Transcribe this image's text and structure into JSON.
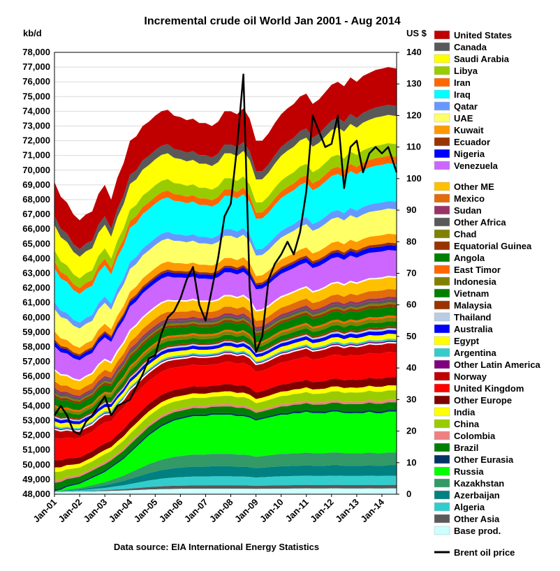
{
  "chart_data": {
    "type": "area",
    "title": "Incremental crude oil World  Jan 2001 - Aug 2014",
    "ylabel_left": "kb/d",
    "ylabel_right": "US $",
    "source": "Data source: EIA International Energy Statistics",
    "ylim_left": [
      48000,
      78000
    ],
    "ylim_right": [
      0,
      140
    ],
    "y_ticks_left": [
      "48,000",
      "49,000",
      "50,000",
      "51,000",
      "52,000",
      "53,000",
      "54,000",
      "55,000",
      "56,000",
      "57,000",
      "58,000",
      "59,000",
      "60,000",
      "61,000",
      "62,000",
      "63,000",
      "64,000",
      "65,000",
      "66,000",
      "67,000",
      "68,000",
      "69,000",
      "70,000",
      "71,000",
      "72,000",
      "73,000",
      "74,000",
      "75,000",
      "76,000",
      "77,000",
      "78,000"
    ],
    "y_ticks_right": [
      "0",
      "10",
      "20",
      "30",
      "40",
      "50",
      "60",
      "70",
      "80",
      "90",
      "100",
      "110",
      "120",
      "130",
      "140"
    ],
    "x_ticks": [
      "Jan-01",
      "Jan-02",
      "Jan-03",
      "Jan-04",
      "Jan-05",
      "Jan-06",
      "Jan-07",
      "Jan-08",
      "Jan-09",
      "Jan-10",
      "Jan-11",
      "Jan-12",
      "Jan-13",
      "Jan-14"
    ],
    "x": [
      "2001-01",
      "2001-04",
      "2001-07",
      "2001-10",
      "2002-01",
      "2002-04",
      "2002-07",
      "2002-10",
      "2003-01",
      "2003-04",
      "2003-07",
      "2003-10",
      "2004-01",
      "2004-04",
      "2004-07",
      "2004-10",
      "2005-01",
      "2005-04",
      "2005-07",
      "2005-10",
      "2006-01",
      "2006-04",
      "2006-07",
      "2006-10",
      "2007-01",
      "2007-04",
      "2007-07",
      "2007-10",
      "2008-01",
      "2008-04",
      "2008-07",
      "2008-10",
      "2009-01",
      "2009-04",
      "2009-07",
      "2009-10",
      "2010-01",
      "2010-04",
      "2010-07",
      "2010-10",
      "2011-01",
      "2011-04",
      "2011-07",
      "2011-10",
      "2012-01",
      "2012-04",
      "2012-07",
      "2012-10",
      "2013-01",
      "2013-04",
      "2013-07",
      "2013-10",
      "2014-01",
      "2014-04",
      "2014-08"
    ],
    "total_kbd": [
      69200,
      68200,
      67800,
      67000,
      66600,
      67000,
      67200,
      68400,
      69000,
      68000,
      69500,
      70500,
      72000,
      72300,
      73000,
      73300,
      73700,
      74000,
      74100,
      73700,
      73600,
      73400,
      73500,
      73200,
      73200,
      73000,
      73300,
      74000,
      74000,
      73800,
      74200,
      73500,
      72000,
      72000,
      72500,
      73200,
      73800,
      74200,
      74500,
      75000,
      75200,
      74500,
      74800,
      75300,
      75800,
      76000,
      75700,
      76300,
      76000,
      76400,
      76600,
      76800,
      76900,
      77000,
      76900
    ],
    "bottom_kbd": [
      48200,
      48300,
      48500,
      48600,
      48700,
      48900,
      49100,
      49300,
      49500,
      49800,
      50100,
      50400,
      50800,
      51200,
      51600,
      52000,
      52300,
      52600,
      52800,
      53000,
      53100,
      53200,
      53300,
      53300,
      53300,
      53400,
      53400,
      53400,
      53400,
      53300,
      53300,
      53200,
      53000,
      53100,
      53200,
      53300,
      53400,
      53400,
      53500,
      53500,
      53600,
      53500,
      53500,
      53500,
      53600,
      53600,
      53500,
      53500,
      53500,
      53500,
      53600,
      53500,
      53500,
      53600,
      53600
    ],
    "series": [
      {
        "name": "United States",
        "color": "#c00000"
      },
      {
        "name": "Canada",
        "color": "#595959"
      },
      {
        "name": "Saudi Arabia",
        "color": "#ffff00"
      },
      {
        "name": "Libya",
        "color": "#99cc00"
      },
      {
        "name": "Iran",
        "color": "#ff6600"
      },
      {
        "name": "Iraq",
        "color": "#00ffff"
      },
      {
        "name": "Qatar",
        "color": "#6699ff"
      },
      {
        "name": "UAE",
        "color": "#ffff66"
      },
      {
        "name": "Kuwait",
        "color": "#ff9900"
      },
      {
        "name": "Ecuador",
        "color": "#993300"
      },
      {
        "name": "Nigeria",
        "color": "#0000ff"
      },
      {
        "name": "Venezuela",
        "color": "#cc66ff"
      },
      {
        "name": "Other ME",
        "color": "#ffc000"
      },
      {
        "name": "Mexico",
        "color": "#e26b0a"
      },
      {
        "name": "Sudan",
        "color": "#993366"
      },
      {
        "name": "Other Africa",
        "color": "#595959"
      },
      {
        "name": "Chad",
        "color": "#808000"
      },
      {
        "name": "Equatorial Guinea",
        "color": "#993300"
      },
      {
        "name": "Angola",
        "color": "#008000"
      },
      {
        "name": "East Timor",
        "color": "#ff6600"
      },
      {
        "name": "Indonesia",
        "color": "#808000"
      },
      {
        "name": "Vietnam",
        "color": "#008000"
      },
      {
        "name": "Malaysia",
        "color": "#993300"
      },
      {
        "name": "Thailand",
        "color": "#b8cce4"
      },
      {
        "name": "Australia",
        "color": "#0000ff"
      },
      {
        "name": "Egypt",
        "color": "#ffff00"
      },
      {
        "name": "Argentina",
        "color": "#33cccc"
      },
      {
        "name": "Other Latin America",
        "color": "#800080"
      },
      {
        "name": "Norway",
        "color": "#c00000"
      },
      {
        "name": "United Kingdom",
        "color": "#ff0000"
      },
      {
        "name": "Other Europe",
        "color": "#800000"
      },
      {
        "name": "India",
        "color": "#ffff00"
      },
      {
        "name": "China",
        "color": "#99cc00"
      },
      {
        "name": "Colombia",
        "color": "#f08080"
      },
      {
        "name": "Brazil",
        "color": "#008000"
      },
      {
        "name": "Other Eurasia",
        "color": "#003366"
      },
      {
        "name": "Russia",
        "color": "#00ff00"
      },
      {
        "name": "Kazakhstan",
        "color": "#339966"
      },
      {
        "name": "Azerbaijan",
        "color": "#008080"
      },
      {
        "name": "Algeria",
        "color": "#33cccc"
      },
      {
        "name": "Other Asia",
        "color": "#595959"
      },
      {
        "name": "Base prod.",
        "color": "#ccffff"
      }
    ],
    "line_series": {
      "name": "Brent oil price",
      "color": "#000000",
      "axis": "right",
      "values": [
        25,
        28,
        25,
        20,
        19,
        23,
        25,
        28,
        31,
        25,
        28,
        29,
        30,
        34,
        38,
        43,
        44,
        51,
        56,
        58,
        62,
        68,
        72,
        60,
        55,
        65,
        75,
        88,
        92,
        110,
        133,
        65,
        45,
        50,
        68,
        73,
        76,
        80,
        76,
        83,
        96,
        120,
        115,
        110,
        111,
        120,
        97,
        110,
        112,
        102,
        108,
        110,
        108,
        110,
        102
      ]
    },
    "grid": true,
    "legend": "right"
  }
}
